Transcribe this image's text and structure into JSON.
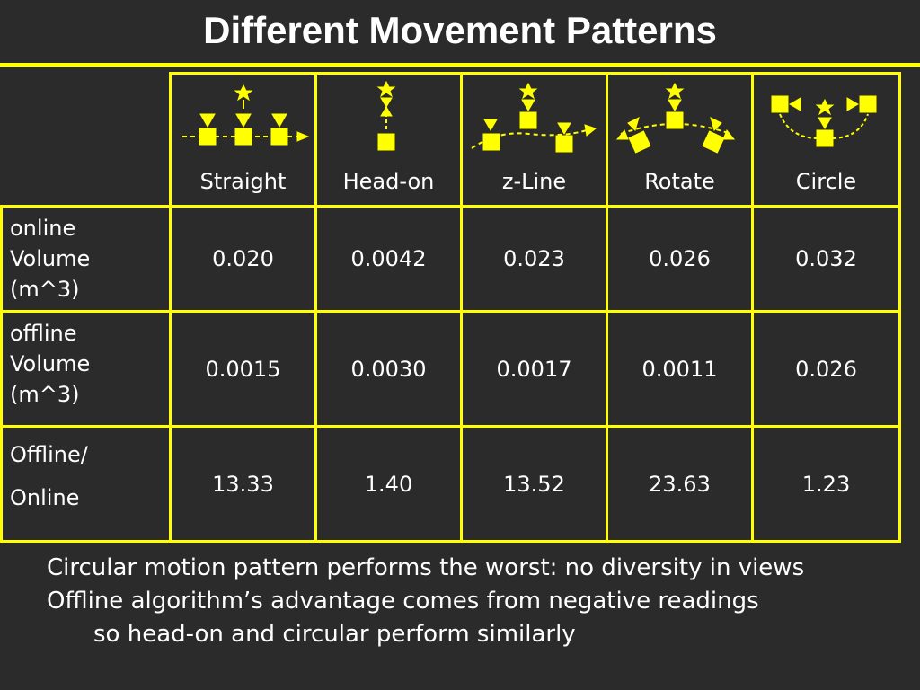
{
  "title": "Different Movement Patterns",
  "colors": {
    "background": "#2b2b2b",
    "accent": "#ffff00",
    "text": "#ffffff"
  },
  "table": {
    "columns": [
      "Straight",
      "Head-on",
      "z-Line",
      "Rotate",
      "Circle"
    ],
    "rows": [
      {
        "label_lines": [
          "online",
          "Volume",
          "(m^3)"
        ],
        "values": [
          "0.020",
          "0.0042",
          "0.023",
          "0.026",
          "0.032"
        ]
      },
      {
        "label_lines": [
          "offline",
          "Volume",
          "(m^3)"
        ],
        "values": [
          "0.0015",
          "0.0030",
          "0.0017",
          "0.0011",
          "0.026"
        ]
      },
      {
        "label_lines": [
          "Offline/",
          "Online"
        ],
        "values": [
          "13.33",
          "1.40",
          "13.52",
          "23.63",
          "1.23"
        ]
      }
    ]
  },
  "notes": [
    "Circular motion pattern performs the worst: no diversity in views",
    "Offline algorithm’s advantage comes from negative readings",
    "so head-on and circular perform similarly"
  ]
}
